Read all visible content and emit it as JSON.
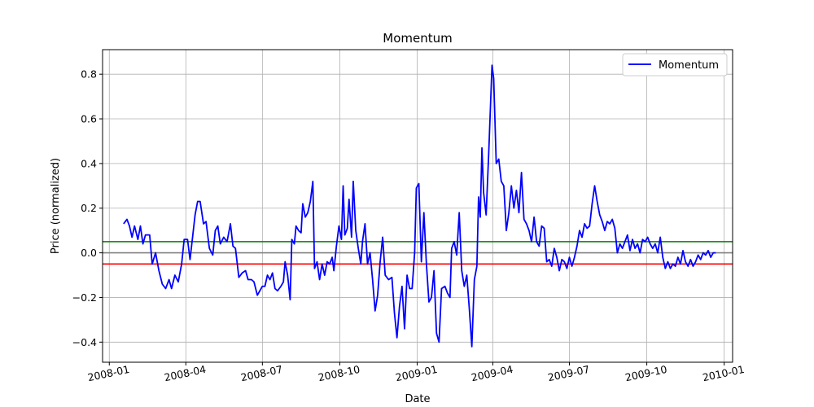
{
  "chart_data": {
    "type": "line",
    "title": "Momentum",
    "xlabel": "Date",
    "ylabel": "Price (normalized)",
    "xlim": [
      "2007-12-24",
      "2010-01-11"
    ],
    "ylim": [
      -0.49,
      0.91
    ],
    "x_ticks": [
      {
        "value": "2008-01-01",
        "label": "2008-01"
      },
      {
        "value": "2008-04-01",
        "label": "2008-04"
      },
      {
        "value": "2008-07-01",
        "label": "2008-07"
      },
      {
        "value": "2008-10-01",
        "label": "2008-10"
      },
      {
        "value": "2009-01-01",
        "label": "2009-01"
      },
      {
        "value": "2009-04-01",
        "label": "2009-04"
      },
      {
        "value": "2009-07-01",
        "label": "2009-07"
      },
      {
        "value": "2009-10-01",
        "label": "2009-10"
      },
      {
        "value": "2010-01-01",
        "label": "2010-01"
      }
    ],
    "y_ticks": [
      {
        "value": -0.4,
        "label": "−0.4"
      },
      {
        "value": -0.2,
        "label": "−0.2"
      },
      {
        "value": 0.0,
        "label": "0.0"
      },
      {
        "value": 0.2,
        "label": "0.2"
      },
      {
        "value": 0.4,
        "label": "0.4"
      },
      {
        "value": 0.6,
        "label": "0.6"
      },
      {
        "value": 0.8,
        "label": "0.8"
      }
    ],
    "grid": true,
    "legend_position": "top-right",
    "series": [
      {
        "name": "Momentum",
        "color": "#0000ff",
        "points": [
          [
            "2008-01-18",
            0.13
          ],
          [
            "2008-01-22",
            0.15
          ],
          [
            "2008-01-25",
            0.12
          ],
          [
            "2008-01-28",
            0.07
          ],
          [
            "2008-01-31",
            0.12
          ],
          [
            "2008-02-04",
            0.06
          ],
          [
            "2008-02-07",
            0.12
          ],
          [
            "2008-02-10",
            0.04
          ],
          [
            "2008-02-13",
            0.08
          ],
          [
            "2008-02-18",
            0.08
          ],
          [
            "2008-02-21",
            -0.05
          ],
          [
            "2008-02-25",
            0.0
          ],
          [
            "2008-02-29",
            -0.08
          ],
          [
            "2008-03-04",
            -0.14
          ],
          [
            "2008-03-08",
            -0.16
          ],
          [
            "2008-03-12",
            -0.12
          ],
          [
            "2008-03-15",
            -0.16
          ],
          [
            "2008-03-19",
            -0.1
          ],
          [
            "2008-03-23",
            -0.13
          ],
          [
            "2008-03-27",
            -0.05
          ],
          [
            "2008-03-30",
            0.06
          ],
          [
            "2008-04-03",
            0.06
          ],
          [
            "2008-04-06",
            -0.03
          ],
          [
            "2008-04-09",
            0.07
          ],
          [
            "2008-04-12",
            0.17
          ],
          [
            "2008-04-15",
            0.23
          ],
          [
            "2008-04-18",
            0.23
          ],
          [
            "2008-04-22",
            0.13
          ],
          [
            "2008-04-25",
            0.14
          ],
          [
            "2008-04-29",
            0.02
          ],
          [
            "2008-05-03",
            -0.01
          ],
          [
            "2008-05-06",
            0.1
          ],
          [
            "2008-05-09",
            0.12
          ],
          [
            "2008-05-12",
            0.04
          ],
          [
            "2008-05-16",
            0.07
          ],
          [
            "2008-05-20",
            0.05
          ],
          [
            "2008-05-24",
            0.13
          ],
          [
            "2008-05-27",
            0.03
          ],
          [
            "2008-05-30",
            0.02
          ],
          [
            "2008-06-03",
            -0.11
          ],
          [
            "2008-06-07",
            -0.09
          ],
          [
            "2008-06-11",
            -0.08
          ],
          [
            "2008-06-14",
            -0.12
          ],
          [
            "2008-06-18",
            -0.12
          ],
          [
            "2008-06-21",
            -0.13
          ],
          [
            "2008-06-25",
            -0.19
          ],
          [
            "2008-06-28",
            -0.17
          ],
          [
            "2008-07-01",
            -0.15
          ],
          [
            "2008-07-04",
            -0.15
          ],
          [
            "2008-07-07",
            -0.1
          ],
          [
            "2008-07-10",
            -0.12
          ],
          [
            "2008-07-13",
            -0.09
          ],
          [
            "2008-07-16",
            -0.16
          ],
          [
            "2008-07-19",
            -0.17
          ],
          [
            "2008-07-23",
            -0.15
          ],
          [
            "2008-07-26",
            -0.13
          ],
          [
            "2008-07-28",
            -0.04
          ],
          [
            "2008-07-31",
            -0.1
          ],
          [
            "2008-08-03",
            -0.21
          ],
          [
            "2008-08-05",
            0.06
          ],
          [
            "2008-08-08",
            0.04
          ],
          [
            "2008-08-10",
            0.12
          ],
          [
            "2008-08-13",
            0.1
          ],
          [
            "2008-08-16",
            0.09
          ],
          [
            "2008-08-18",
            0.22
          ],
          [
            "2008-08-21",
            0.16
          ],
          [
            "2008-08-24",
            0.18
          ],
          [
            "2008-08-27",
            0.23
          ],
          [
            "2008-08-30",
            0.32
          ],
          [
            "2008-09-01",
            -0.07
          ],
          [
            "2008-09-04",
            -0.04
          ],
          [
            "2008-09-07",
            -0.12
          ],
          [
            "2008-09-10",
            -0.05
          ],
          [
            "2008-09-13",
            -0.1
          ],
          [
            "2008-09-16",
            -0.04
          ],
          [
            "2008-09-19",
            -0.05
          ],
          [
            "2008-09-22",
            -0.02
          ],
          [
            "2008-09-24",
            -0.08
          ],
          [
            "2008-09-27",
            0.03
          ],
          [
            "2008-09-30",
            0.12
          ],
          [
            "2008-10-03",
            0.06
          ],
          [
            "2008-10-05",
            0.3
          ],
          [
            "2008-10-07",
            0.08
          ],
          [
            "2008-10-10",
            0.11
          ],
          [
            "2008-10-12",
            0.24
          ],
          [
            "2008-10-15",
            0.07
          ],
          [
            "2008-10-17",
            0.32
          ],
          [
            "2008-10-20",
            0.1
          ],
          [
            "2008-10-23",
            0.02
          ],
          [
            "2008-10-26",
            -0.05
          ],
          [
            "2008-10-28",
            0.05
          ],
          [
            "2008-10-31",
            0.13
          ],
          [
            "2008-11-03",
            -0.05
          ],
          [
            "2008-11-06",
            0.0
          ],
          [
            "2008-11-09",
            -0.12
          ],
          [
            "2008-11-12",
            -0.26
          ],
          [
            "2008-11-15",
            -0.19
          ],
          [
            "2008-11-18",
            -0.04
          ],
          [
            "2008-11-21",
            0.07
          ],
          [
            "2008-11-24",
            -0.1
          ],
          [
            "2008-11-28",
            -0.12
          ],
          [
            "2008-12-02",
            -0.11
          ],
          [
            "2008-12-05",
            -0.27
          ],
          [
            "2008-12-08",
            -0.38
          ],
          [
            "2008-12-11",
            -0.24
          ],
          [
            "2008-12-14",
            -0.15
          ],
          [
            "2008-12-17",
            -0.34
          ],
          [
            "2008-12-20",
            -0.1
          ],
          [
            "2008-12-23",
            -0.16
          ],
          [
            "2008-12-26",
            -0.16
          ],
          [
            "2008-12-29",
            0.0
          ],
          [
            "2008-12-31",
            0.29
          ],
          [
            "2009-01-03",
            0.31
          ],
          [
            "2009-01-06",
            -0.04
          ],
          [
            "2009-01-09",
            0.18
          ],
          [
            "2009-01-12",
            -0.05
          ],
          [
            "2009-01-15",
            -0.22
          ],
          [
            "2009-01-18",
            -0.2
          ],
          [
            "2009-01-21",
            -0.08
          ],
          [
            "2009-01-24",
            -0.36
          ],
          [
            "2009-01-27",
            -0.4
          ],
          [
            "2009-01-30",
            -0.16
          ],
          [
            "2009-02-03",
            -0.15
          ],
          [
            "2009-02-06",
            -0.18
          ],
          [
            "2009-02-09",
            -0.2
          ],
          [
            "2009-02-11",
            0.02
          ],
          [
            "2009-02-14",
            0.05
          ],
          [
            "2009-02-17",
            -0.01
          ],
          [
            "2009-02-20",
            0.18
          ],
          [
            "2009-02-23",
            -0.08
          ],
          [
            "2009-02-26",
            -0.15
          ],
          [
            "2009-03-01",
            -0.1
          ],
          [
            "2009-03-04",
            -0.25
          ],
          [
            "2009-03-07",
            -0.42
          ],
          [
            "2009-03-10",
            -0.12
          ],
          [
            "2009-03-13",
            -0.06
          ],
          [
            "2009-03-15",
            0.25
          ],
          [
            "2009-03-17",
            0.16
          ],
          [
            "2009-03-19",
            0.47
          ],
          [
            "2009-03-21",
            0.27
          ],
          [
            "2009-03-24",
            0.17
          ],
          [
            "2009-03-27",
            0.44
          ],
          [
            "2009-03-31",
            0.84
          ],
          [
            "2009-04-02",
            0.78
          ],
          [
            "2009-04-05",
            0.4
          ],
          [
            "2009-04-08",
            0.42
          ],
          [
            "2009-04-11",
            0.32
          ],
          [
            "2009-04-14",
            0.3
          ],
          [
            "2009-04-17",
            0.1
          ],
          [
            "2009-04-20",
            0.18
          ],
          [
            "2009-04-23",
            0.3
          ],
          [
            "2009-04-26",
            0.2
          ],
          [
            "2009-04-29",
            0.28
          ],
          [
            "2009-05-02",
            0.18
          ],
          [
            "2009-05-05",
            0.36
          ],
          [
            "2009-05-08",
            0.15
          ],
          [
            "2009-05-11",
            0.13
          ],
          [
            "2009-05-14",
            0.1
          ],
          [
            "2009-05-17",
            0.05
          ],
          [
            "2009-05-20",
            0.16
          ],
          [
            "2009-05-23",
            0.05
          ],
          [
            "2009-05-26",
            0.03
          ],
          [
            "2009-05-29",
            0.12
          ],
          [
            "2009-06-01",
            0.11
          ],
          [
            "2009-06-04",
            -0.04
          ],
          [
            "2009-06-07",
            -0.03
          ],
          [
            "2009-06-10",
            -0.06
          ],
          [
            "2009-06-13",
            0.02
          ],
          [
            "2009-06-16",
            -0.02
          ],
          [
            "2009-06-19",
            -0.08
          ],
          [
            "2009-06-22",
            -0.03
          ],
          [
            "2009-06-25",
            -0.04
          ],
          [
            "2009-06-28",
            -0.07
          ],
          [
            "2009-07-01",
            -0.02
          ],
          [
            "2009-07-04",
            -0.06
          ],
          [
            "2009-07-07",
            -0.02
          ],
          [
            "2009-07-10",
            0.03
          ],
          [
            "2009-07-13",
            0.1
          ],
          [
            "2009-07-16",
            0.07
          ],
          [
            "2009-07-19",
            0.13
          ],
          [
            "2009-07-22",
            0.11
          ],
          [
            "2009-07-25",
            0.12
          ],
          [
            "2009-07-28",
            0.22
          ],
          [
            "2009-07-31",
            0.3
          ],
          [
            "2009-08-03",
            0.23
          ],
          [
            "2009-08-06",
            0.17
          ],
          [
            "2009-08-09",
            0.14
          ],
          [
            "2009-08-12",
            0.1
          ],
          [
            "2009-08-15",
            0.14
          ],
          [
            "2009-08-18",
            0.13
          ],
          [
            "2009-08-21",
            0.15
          ],
          [
            "2009-08-24",
            0.11
          ],
          [
            "2009-08-27",
            0.0
          ],
          [
            "2009-08-30",
            0.04
          ],
          [
            "2009-09-02",
            0.02
          ],
          [
            "2009-09-05",
            0.05
          ],
          [
            "2009-09-08",
            0.08
          ],
          [
            "2009-09-11",
            0.01
          ],
          [
            "2009-09-14",
            0.06
          ],
          [
            "2009-09-17",
            0.02
          ],
          [
            "2009-09-20",
            0.04
          ],
          [
            "2009-09-23",
            0.0
          ],
          [
            "2009-09-26",
            0.06
          ],
          [
            "2009-09-29",
            0.05
          ],
          [
            "2009-10-02",
            0.07
          ],
          [
            "2009-10-05",
            0.04
          ],
          [
            "2009-10-08",
            0.02
          ],
          [
            "2009-10-11",
            0.04
          ],
          [
            "2009-10-14",
            0.0
          ],
          [
            "2009-10-17",
            0.07
          ],
          [
            "2009-10-20",
            -0.02
          ],
          [
            "2009-10-23",
            -0.07
          ],
          [
            "2009-10-26",
            -0.04
          ],
          [
            "2009-10-29",
            -0.07
          ],
          [
            "2009-11-01",
            -0.05
          ],
          [
            "2009-11-04",
            -0.06
          ],
          [
            "2009-11-07",
            -0.02
          ],
          [
            "2009-11-10",
            -0.05
          ],
          [
            "2009-11-13",
            0.01
          ],
          [
            "2009-11-16",
            -0.04
          ],
          [
            "2009-11-19",
            -0.06
          ],
          [
            "2009-11-22",
            -0.03
          ],
          [
            "2009-11-25",
            -0.06
          ],
          [
            "2009-11-28",
            -0.04
          ],
          [
            "2009-12-01",
            -0.01
          ],
          [
            "2009-12-04",
            -0.03
          ],
          [
            "2009-12-07",
            0.0
          ],
          [
            "2009-12-10",
            -0.01
          ],
          [
            "2009-12-13",
            0.01
          ],
          [
            "2009-12-16",
            -0.02
          ],
          [
            "2009-12-19",
            0.0
          ],
          [
            "2009-12-22",
            0.0
          ]
        ]
      }
    ],
    "reference_lines": [
      {
        "value": 0.05,
        "color": "#008000"
      },
      {
        "value": 0.0,
        "color": "#808080"
      },
      {
        "value": -0.05,
        "color": "#ff0000"
      }
    ]
  }
}
